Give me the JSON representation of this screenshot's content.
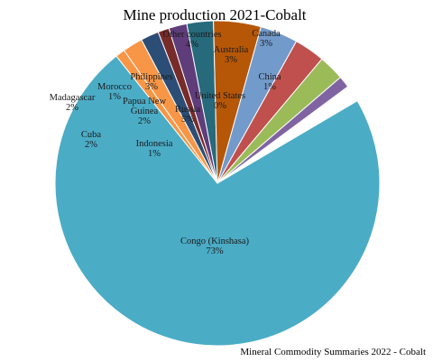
{
  "chart_data": {
    "type": "pie",
    "title": "Mine production 2021-Cobalt",
    "source": "Mineral  Commodity Summaries 2022 - Cobalt",
    "slices": [
      {
        "name": "Congo (Kinshasa)",
        "value": 73,
        "pct_label": "73%",
        "color": "#4bacc6"
      },
      {
        "name": "Cuba",
        "value": 2,
        "pct_label": "2%",
        "color": "#f79646"
      },
      {
        "name": "Madagascar",
        "value": 2,
        "pct_label": "2%",
        "color": "#2c4d75"
      },
      {
        "name": "Morocco",
        "value": 1,
        "pct_label": "1%",
        "color": "#772c2a"
      },
      {
        "name": "Papua New Guinea",
        "value": 2,
        "pct_label": "2%",
        "color": "#5f3c7a"
      },
      {
        "name": "Philippines",
        "value": 3,
        "pct_label": "3%",
        "color": "#276a7c"
      },
      {
        "name": "Russia",
        "value": 5,
        "pct_label": "5%",
        "color": "#b65708"
      },
      {
        "name": "Other countries",
        "value": 4,
        "pct_label": "4%",
        "color": "#729aca"
      },
      {
        "name": "Australia",
        "value": 3,
        "pct_label": "3%",
        "color": "#c0504d"
      },
      {
        "name": "Canada",
        "value": 3,
        "pct_label": "3%",
        "color": "#9bbb59"
      },
      {
        "name": "China",
        "value": 1,
        "pct_label": "1%",
        "color": "#8064a2"
      },
      {
        "name": "United States",
        "value": 0,
        "pct_label": "0%",
        "color": "#4f81bd"
      },
      {
        "name": "Indonesia",
        "value": 1,
        "pct_label": "1%",
        "color": "#f79646"
      }
    ]
  }
}
